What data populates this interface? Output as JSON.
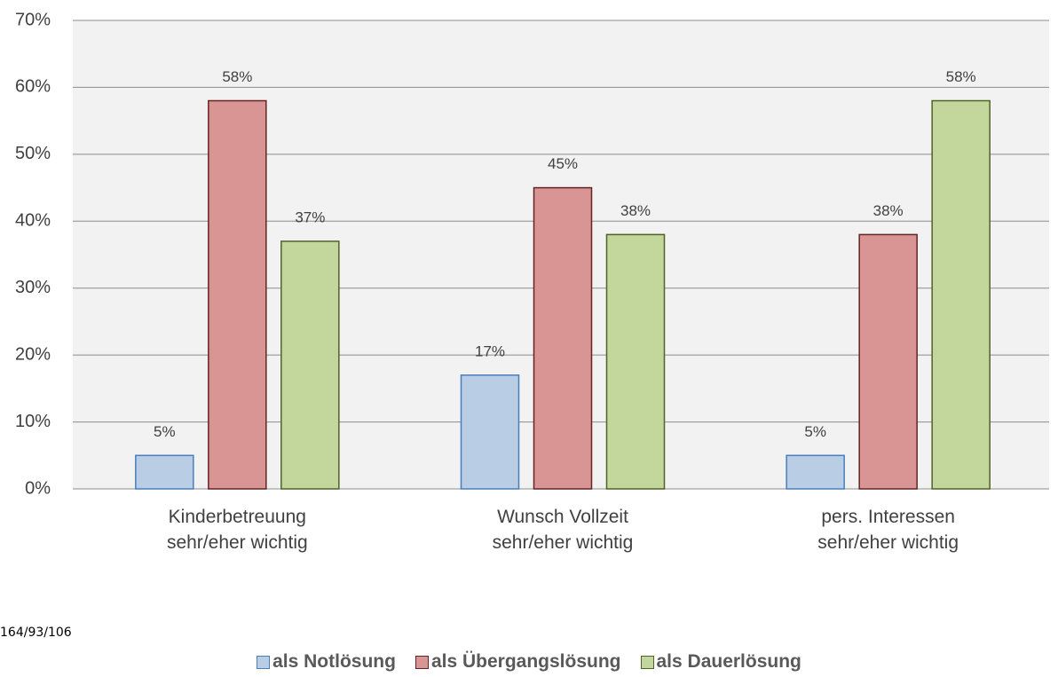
{
  "chart_data": {
    "type": "bar",
    "categories": [
      "Kinderbetreuung\nsehr/eher wichtig",
      "Wunsch Vollzeit\nsehr/eher wichtig",
      "pers. Interessen\nsehr/eher wichtig"
    ],
    "series": [
      {
        "name": "als Notlösung",
        "color": "#b9cde5",
        "stroke": "#4a7ebb",
        "values": [
          5,
          17,
          5
        ],
        "value_labels": [
          "5%",
          "17%",
          "5%"
        ]
      },
      {
        "name": "als Übergangslösung",
        "color": "#d99594",
        "stroke": "#632423",
        "values": [
          58,
          45,
          38
        ],
        "value_labels": [
          "58%",
          "45%",
          "38%"
        ]
      },
      {
        "name": "als Dauerlösung",
        "color": "#c3d69b",
        "stroke": "#4f6228",
        "values": [
          37,
          38,
          58
        ],
        "value_labels": [
          "37%",
          "38%",
          "58%"
        ]
      }
    ],
    "ylim": [
      0,
      70
    ],
    "yticks": [
      {
        "value": 0,
        "label": "0%"
      },
      {
        "value": 10,
        "label": "10%"
      },
      {
        "value": 20,
        "label": "20%"
      },
      {
        "value": 30,
        "label": "30%"
      },
      {
        "value": 40,
        "label": "40%"
      },
      {
        "value": 50,
        "label": "50%"
      },
      {
        "value": 60,
        "label": "60%"
      },
      {
        "value": 70,
        "label": "70%"
      }
    ],
    "grid": true,
    "legend": "bottom",
    "annotation": "164/93/106"
  }
}
